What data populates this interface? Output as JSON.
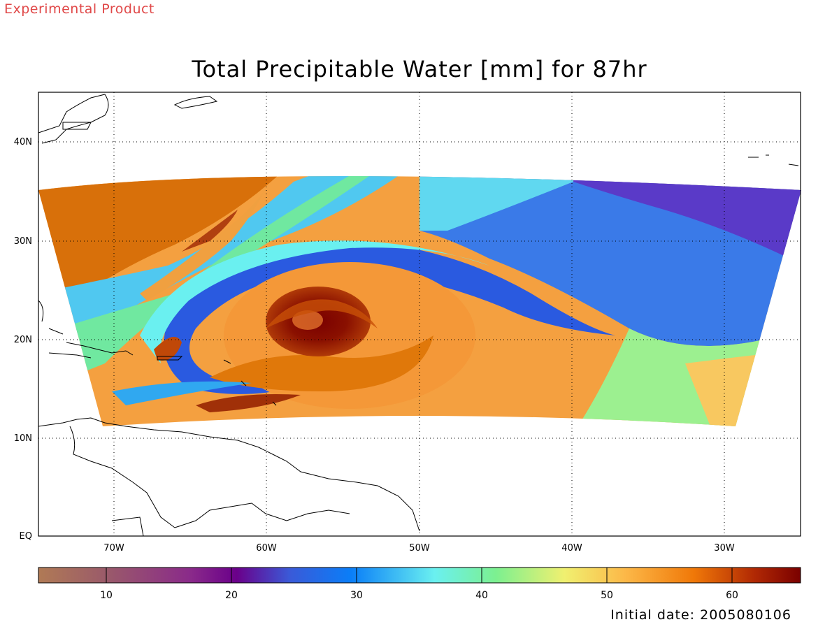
{
  "product_tag": "Experimental Product",
  "title": "Total Precipitable Water [mm] for 87hr",
  "initial_date": "Initial date: 2005080106",
  "map": {
    "lon_range": [
      -75,
      -25
    ],
    "lat_range": [
      0,
      45
    ],
    "lat_labels": [
      "40N",
      "30N",
      "20N",
      "10N",
      "EQ"
    ],
    "lon_labels": [
      "70W",
      "60W",
      "50W",
      "40W",
      "30W"
    ],
    "grid": "dotted",
    "storm_center": {
      "lon": -56,
      "lat": 22
    }
  },
  "colorbar": {
    "range": [
      5,
      66
    ],
    "ticks": [
      "10",
      "20",
      "30",
      "40",
      "50",
      "60"
    ],
    "colors": [
      "#b07a55",
      "#9a5a6a",
      "#8a2a8a",
      "#6a008a",
      "#5a2ab0",
      "#3a5ad8",
      "#1a7ef0",
      "#2aa8f4",
      "#6ae8f0",
      "#6cf0a8",
      "#9cf070",
      "#e8f06a",
      "#fcd050",
      "#f8a838",
      "#f07808",
      "#d05008",
      "#a82004",
      "#7a0000"
    ]
  }
}
